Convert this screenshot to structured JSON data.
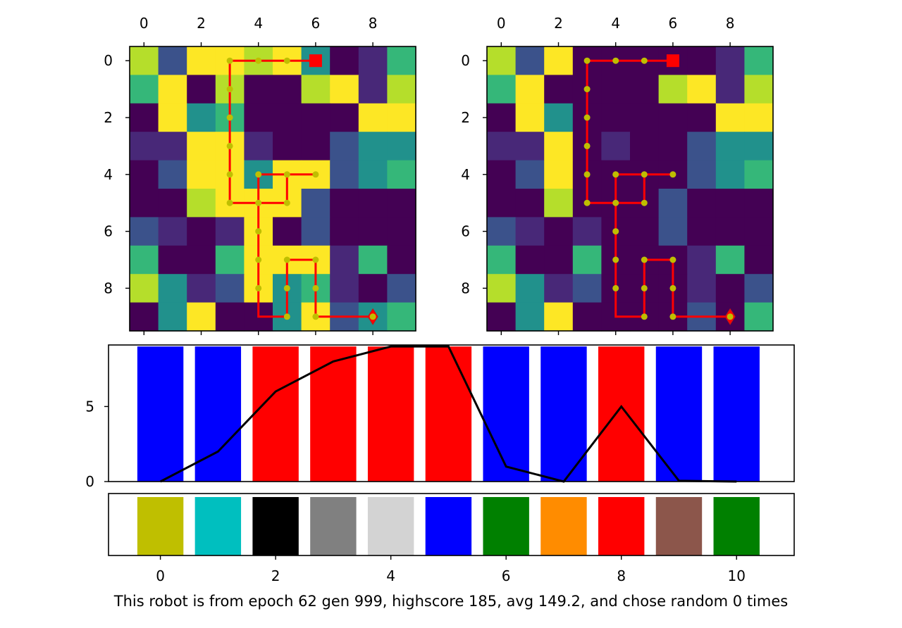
{
  "caption": "This robot is from epoch 62 gen 999, highscore 185, avg 149.2, and chose random 0 times",
  "chart_data": [
    {
      "type": "heatmap",
      "name": "left grid",
      "rows": 10,
      "cols": 10,
      "xticks": [
        0,
        2,
        4,
        6,
        8
      ],
      "yticks": [
        0,
        2,
        4,
        6,
        8
      ],
      "cells": [
        [
          "#b5de2b",
          "#3b528b",
          "#fde725",
          "#fde725",
          "#b5de2b",
          "#fde725",
          "#21918c",
          "#440154",
          "#482878",
          "#35b779"
        ],
        [
          "#35b779",
          "#fde725",
          "#440154",
          "#b5de2b",
          "#440154",
          "#440154",
          "#b5de2b",
          "#fde725",
          "#482878",
          "#b5de2b"
        ],
        [
          "#440154",
          "#fde725",
          "#21918c",
          "#35b779",
          "#440154",
          "#440154",
          "#440154",
          "#440154",
          "#fde725",
          "#fde725"
        ],
        [
          "#482878",
          "#482878",
          "#fde725",
          "#fde725",
          "#482878",
          "#440154",
          "#440154",
          "#3b528b",
          "#21918c",
          "#21918c"
        ],
        [
          "#440154",
          "#3b528b",
          "#fde725",
          "#fde725",
          "#21918c",
          "#fde725",
          "#fde725",
          "#3b528b",
          "#21918c",
          "#35b779"
        ],
        [
          "#440154",
          "#440154",
          "#b5de2b",
          "#fde725",
          "#fde725",
          "#fde725",
          "#3b528b",
          "#440154",
          "#440154",
          "#440154"
        ],
        [
          "#3b528b",
          "#482878",
          "#440154",
          "#482878",
          "#fde725",
          "#440154",
          "#3b528b",
          "#440154",
          "#440154",
          "#440154"
        ],
        [
          "#35b779",
          "#440154",
          "#440154",
          "#35b779",
          "#fde725",
          "#fde725",
          "#fde725",
          "#482878",
          "#35b779",
          "#440154"
        ],
        [
          "#b5de2b",
          "#21918c",
          "#482878",
          "#3b528b",
          "#fde725",
          "#21918c",
          "#35b779",
          "#482878",
          "#440154",
          "#3b528b"
        ],
        [
          "#440154",
          "#21918c",
          "#fde725",
          "#440154",
          "#440154",
          "#21918c",
          "#fde725",
          "#3b528b",
          "#21918c",
          "#35b779"
        ]
      ],
      "path": [
        [
          6,
          0
        ],
        [
          5,
          0
        ],
        [
          4,
          0
        ],
        [
          3,
          0
        ],
        [
          3,
          1
        ],
        [
          3,
          2
        ],
        [
          3,
          3
        ],
        [
          3,
          4
        ],
        [
          3,
          5
        ],
        [
          4,
          5
        ],
        [
          5,
          5
        ],
        [
          5,
          4
        ],
        [
          4,
          4
        ],
        [
          6,
          4
        ],
        [
          4,
          4
        ],
        [
          4,
          5
        ],
        [
          4,
          6
        ],
        [
          4,
          7
        ],
        [
          4,
          8
        ],
        [
          4,
          9
        ],
        [
          5,
          9
        ],
        [
          5,
          8
        ],
        [
          5,
          7
        ],
        [
          6,
          7
        ],
        [
          6,
          8
        ],
        [
          6,
          9
        ],
        [
          7,
          9
        ],
        [
          8,
          9
        ]
      ],
      "dots": [
        [
          5,
          0
        ],
        [
          4,
          0
        ],
        [
          3,
          0
        ],
        [
          3,
          1
        ],
        [
          3,
          2
        ],
        [
          3,
          3
        ],
        [
          3,
          4
        ],
        [
          3,
          5
        ],
        [
          4,
          5
        ],
        [
          5,
          5
        ],
        [
          4,
          4
        ],
        [
          5,
          4
        ],
        [
          6,
          4
        ],
        [
          4,
          6
        ],
        [
          4,
          7
        ],
        [
          4,
          8
        ],
        [
          5,
          7
        ],
        [
          5,
          8
        ],
        [
          5,
          9
        ],
        [
          6,
          7
        ],
        [
          6,
          8
        ],
        [
          6,
          9
        ]
      ],
      "start": [
        6,
        0
      ],
      "end": [
        8,
        9
      ],
      "path_color": "#ff0000",
      "dot_color": "#bfbf00"
    },
    {
      "type": "heatmap",
      "name": "right grid",
      "rows": 10,
      "cols": 10,
      "xticks": [
        0,
        2,
        4,
        6,
        8
      ],
      "yticks": [
        0,
        2,
        4,
        6,
        8
      ],
      "cells": [
        [
          "#b5de2b",
          "#3b528b",
          "#fde725",
          "#440154",
          "#440154",
          "#440154",
          "#440154",
          "#440154",
          "#482878",
          "#35b779"
        ],
        [
          "#35b779",
          "#fde725",
          "#440154",
          "#440154",
          "#440154",
          "#440154",
          "#b5de2b",
          "#fde725",
          "#482878",
          "#b5de2b"
        ],
        [
          "#440154",
          "#fde725",
          "#21918c",
          "#440154",
          "#440154",
          "#440154",
          "#440154",
          "#440154",
          "#fde725",
          "#fde725"
        ],
        [
          "#482878",
          "#482878",
          "#fde725",
          "#440154",
          "#482878",
          "#440154",
          "#440154",
          "#3b528b",
          "#21918c",
          "#21918c"
        ],
        [
          "#440154",
          "#3b528b",
          "#fde725",
          "#440154",
          "#440154",
          "#440154",
          "#440154",
          "#3b528b",
          "#21918c",
          "#35b779"
        ],
        [
          "#440154",
          "#440154",
          "#b5de2b",
          "#440154",
          "#440154",
          "#440154",
          "#3b528b",
          "#440154",
          "#440154",
          "#440154"
        ],
        [
          "#3b528b",
          "#482878",
          "#440154",
          "#482878",
          "#440154",
          "#440154",
          "#3b528b",
          "#440154",
          "#440154",
          "#440154"
        ],
        [
          "#35b779",
          "#440154",
          "#440154",
          "#35b779",
          "#440154",
          "#440154",
          "#440154",
          "#482878",
          "#35b779",
          "#440154"
        ],
        [
          "#b5de2b",
          "#21918c",
          "#482878",
          "#3b528b",
          "#440154",
          "#440154",
          "#440154",
          "#482878",
          "#440154",
          "#3b528b"
        ],
        [
          "#440154",
          "#21918c",
          "#fde725",
          "#440154",
          "#440154",
          "#440154",
          "#440154",
          "#3b528b",
          "#440154",
          "#35b779"
        ]
      ],
      "path": [
        [
          6,
          0
        ],
        [
          5,
          0
        ],
        [
          4,
          0
        ],
        [
          3,
          0
        ],
        [
          3,
          1
        ],
        [
          3,
          2
        ],
        [
          3,
          3
        ],
        [
          3,
          4
        ],
        [
          3,
          5
        ],
        [
          4,
          5
        ],
        [
          5,
          5
        ],
        [
          5,
          4
        ],
        [
          4,
          4
        ],
        [
          6,
          4
        ],
        [
          4,
          4
        ],
        [
          4,
          5
        ],
        [
          4,
          6
        ],
        [
          4,
          7
        ],
        [
          4,
          8
        ],
        [
          4,
          9
        ],
        [
          5,
          9
        ],
        [
          5,
          8
        ],
        [
          5,
          7
        ],
        [
          6,
          7
        ],
        [
          6,
          8
        ],
        [
          6,
          9
        ],
        [
          7,
          9
        ],
        [
          8,
          9
        ]
      ],
      "dots": [
        [
          5,
          0
        ],
        [
          4,
          0
        ],
        [
          3,
          0
        ],
        [
          3,
          1
        ],
        [
          3,
          2
        ],
        [
          3,
          3
        ],
        [
          3,
          4
        ],
        [
          3,
          5
        ],
        [
          4,
          5
        ],
        [
          5,
          5
        ],
        [
          4,
          4
        ],
        [
          5,
          4
        ],
        [
          6,
          4
        ],
        [
          4,
          6
        ],
        [
          4,
          7
        ],
        [
          4,
          8
        ],
        [
          5,
          7
        ],
        [
          5,
          8
        ],
        [
          5,
          9
        ],
        [
          6,
          7
        ],
        [
          6,
          8
        ],
        [
          6,
          9
        ],
        [
          8,
          9
        ]
      ],
      "start": [
        6,
        0
      ],
      "end": [
        8,
        9
      ],
      "path_color": "#ff0000",
      "dot_color": "#bfbf00"
    },
    {
      "type": "bar",
      "name": "action bars",
      "x": [
        0,
        1,
        2,
        3,
        4,
        5,
        6,
        7,
        8,
        9,
        10
      ],
      "values": [
        9,
        9,
        9,
        9,
        9,
        9,
        9,
        9,
        9,
        9,
        9
      ],
      "colors": [
        "#0000ff",
        "#0000ff",
        "#ff0000",
        "#ff0000",
        "#ff0000",
        "#ff0000",
        "#0000ff",
        "#0000ff",
        "#ff0000",
        "#0000ff",
        "#0000ff"
      ],
      "yticks": [
        0,
        5
      ],
      "ylim": [
        0,
        9.1
      ],
      "xlim": [
        -0.9,
        11.0
      ],
      "line": {
        "x": [
          0,
          1,
          2,
          3,
          4,
          5,
          6,
          7,
          8,
          9,
          10
        ],
        "y": [
          0,
          2,
          6,
          8,
          9,
          9,
          1,
          0,
          5,
          0.05,
          0
        ],
        "color": "#000000"
      }
    },
    {
      "type": "bar",
      "name": "color legend bars",
      "x": [
        0,
        1,
        2,
        3,
        4,
        5,
        6,
        7,
        8,
        9,
        10
      ],
      "values": [
        1,
        1,
        1,
        1,
        1,
        1,
        1,
        1,
        1,
        1,
        1
      ],
      "colors": [
        "#bfbf00",
        "#00bfbf",
        "#000000",
        "#808080",
        "#d3d3d3",
        "#0000ff",
        "#008000",
        "#ff8c00",
        "#ff0000",
        "#8c564b",
        "#008000"
      ],
      "xticks": [
        0,
        2,
        4,
        6,
        8,
        10
      ],
      "xlim": [
        -0.9,
        11.0
      ]
    }
  ]
}
